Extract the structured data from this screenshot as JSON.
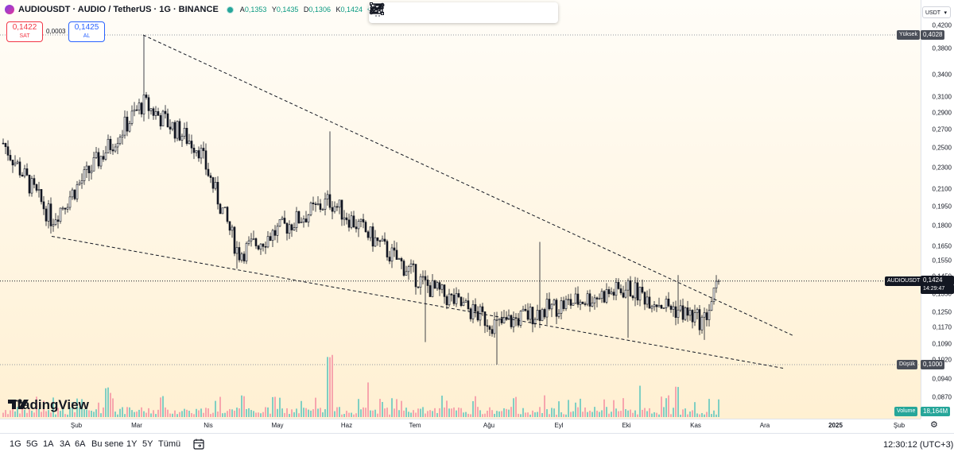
{
  "legend": {
    "symbol": "AUDIOUSDT · AUDIO / TetherUS · 1G · BINANCE",
    "ohlc": [
      {
        "k": "A",
        "v": "0,1353"
      },
      {
        "k": "Y",
        "v": "0,1435"
      },
      {
        "k": "D",
        "v": "0,1306"
      },
      {
        "k": "K",
        "v": "0,1424"
      },
      {
        "k": "",
        "v": "+0"
      }
    ]
  },
  "trade": {
    "sell_price": "0,1422",
    "sell_label": "SAT",
    "spread": "0,0003",
    "buy_price": "0,1425",
    "buy_label": "AL"
  },
  "toolbar": {
    "icons": [
      "trend-line-tool-icon",
      "horizontal-ray-tool-icon",
      "rectangle-tool-icon",
      "fib-retracement-tool-icon",
      "pattern-tool-icon",
      "position-tool-icon",
      "brush-tool-icon",
      "line-tool-icon"
    ]
  },
  "brand": {
    "logo_text": "TradingView"
  },
  "currency_selector": {
    "value": "USDT"
  },
  "labels": {
    "high": "Yüksek",
    "high_price": "0,4028",
    "low": "Düşük",
    "low_price": "0,1000",
    "symbol": "AUDIOUSDT",
    "last_price": "0,1424",
    "countdown": "14:29:47",
    "volume": "Volume",
    "volume_value": "18,164M"
  },
  "price_ticks": [
    "0,4200",
    "0,3800",
    "0,3400",
    "0,3100",
    "0,2900",
    "0,2700",
    "0,2500",
    "0,2300",
    "0,2100",
    "0,1950",
    "0,1800",
    "0,1650",
    "0,1550",
    "0,1450",
    "0,1350",
    "0,1250",
    "0,1170",
    "0,1090",
    "0,1020",
    "0,0940",
    "0,0870"
  ],
  "time_ticks": [
    "Şub",
    "Mar",
    "Nis",
    "May",
    "Haz",
    "Tem",
    "Ağu",
    "Eyl",
    "Eki",
    "Kas",
    "Ara",
    "2025",
    "Şub"
  ],
  "timeframes": [
    "1G",
    "5G",
    "1A",
    "3A",
    "6A",
    "Bu sene",
    "1Y",
    "5Y",
    "Tümü"
  ],
  "clock": "12:30:12 (UTC+3)",
  "colors": {
    "up": "#089981",
    "down": "#f23645",
    "candle": "#131722",
    "accent": "#2962ff"
  },
  "chart_data": {
    "type": "candlestick",
    "scale": "log",
    "ylim": [
      0.085,
      0.43
    ],
    "series": [
      {
        "name": "AUDIOUSDT",
        "last": 0.1424
      }
    ],
    "high": 0.4028,
    "low": 0.1,
    "x_range": [
      "Oca",
      "Mar 2025"
    ],
    "key_closes": [
      {
        "x": "Oca",
        "close": 0.255
      },
      {
        "x": "Şub",
        "close": 0.185
      },
      {
        "x": "Mar",
        "close": 0.302
      },
      {
        "x": "Nis",
        "close": 0.25
      },
      {
        "x": "May",
        "close": 0.16
      },
      {
        "x": "Haz",
        "close": 0.2
      },
      {
        "x": "Tem",
        "close": 0.14
      },
      {
        "x": "Ağu",
        "close": 0.118
      },
      {
        "x": "Eyl",
        "close": 0.128
      },
      {
        "x": "Eki",
        "close": 0.138
      },
      {
        "x": "Kas",
        "close": 0.12
      },
      {
        "x": "Kas",
        "close": 0.1424
      }
    ],
    "trendlines": [
      {
        "name": "upper",
        "from": 0.4028,
        "to": 0.113
      },
      {
        "name": "lower",
        "from": 0.172,
        "to": 0.0985
      }
    ],
    "volume_last": "18,164M"
  }
}
